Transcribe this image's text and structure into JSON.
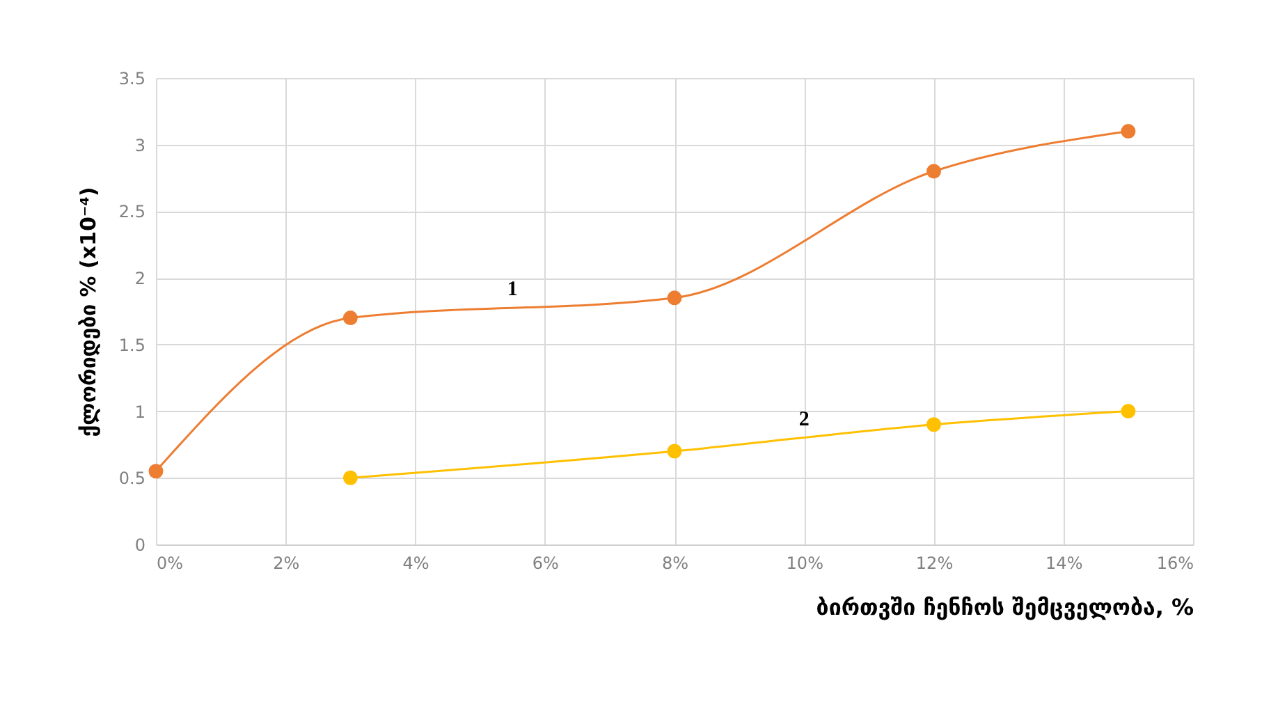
{
  "chart_data": {
    "type": "line",
    "xlabel": "ბირთვში ჩენჩოს შემცველობა, %",
    "ylabel": "ქლორიდები % (x10⁻⁴)",
    "series": [
      {
        "name": "1",
        "color": "#ed7d31",
        "x": [
          0,
          3,
          8,
          12,
          15
        ],
        "values": [
          0.55,
          1.7,
          1.85,
          2.8,
          3.1
        ]
      },
      {
        "name": "2",
        "color": "#ffc000",
        "x": [
          3,
          8,
          12,
          15
        ],
        "values": [
          0.5,
          0.7,
          0.9,
          1.0
        ]
      }
    ],
    "xlim": [
      0,
      16
    ],
    "xticks": [
      {
        "value": 0,
        "label": "0%"
      },
      {
        "value": 2,
        "label": "2%"
      },
      {
        "value": 4,
        "label": "4%"
      },
      {
        "value": 6,
        "label": "6%"
      },
      {
        "value": 8,
        "label": "8%"
      },
      {
        "value": 10,
        "label": "10%"
      },
      {
        "value": 12,
        "label": "12%"
      },
      {
        "value": 14,
        "label": "14%"
      },
      {
        "value": 16,
        "label": "16%"
      }
    ],
    "ylim": [
      0,
      3.5
    ],
    "yticks": [
      0,
      0.5,
      1,
      1.5,
      2,
      2.5,
      3,
      3.5
    ],
    "grid": true,
    "marker": "circle",
    "line_style": "solid"
  }
}
